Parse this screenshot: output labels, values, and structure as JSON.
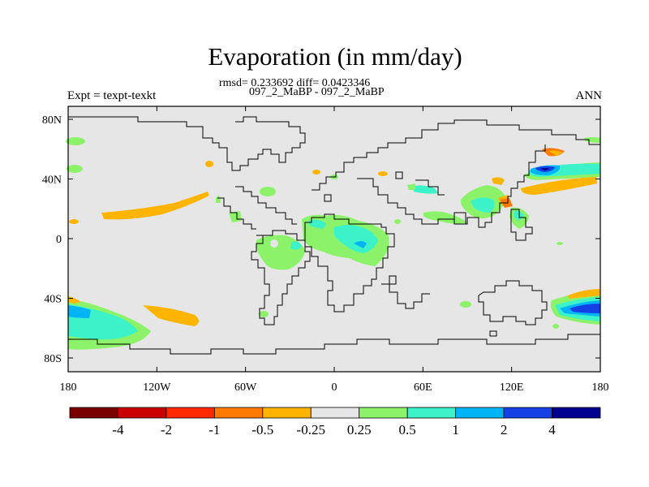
{
  "title": "Evaporation (in mm/day)",
  "stats_line": "rmsd= 0.233692 diff= 0.0423346",
  "case_line": "097_2_MaBP - 097_2_MaBP",
  "left_label": "Expt = texpt-texkt",
  "right_label": "ANN",
  "lat_ticks": [
    {
      "label": "80N",
      "lat": 80
    },
    {
      "label": "40N",
      "lat": 40
    },
    {
      "label": "0",
      "lat": 0
    },
    {
      "label": "40S",
      "lat": -40
    },
    {
      "label": "80S",
      "lat": -80
    }
  ],
  "lon_ticks": [
    {
      "label": "180",
      "lon": -180
    },
    {
      "label": "120W",
      "lon": -120
    },
    {
      "label": "60W",
      "lon": -60
    },
    {
      "label": "0",
      "lon": 0
    },
    {
      "label": "60E",
      "lon": 60
    },
    {
      "label": "120E",
      "lon": 120
    },
    {
      "label": "180",
      "lon": 180
    }
  ],
  "colorbar": {
    "colors": [
      "#7a0000",
      "#c80000",
      "#ff2a00",
      "#ff7a00",
      "#ffb400",
      "#e6e6e6",
      "#8cf26a",
      "#3cf2c8",
      "#00b4f5",
      "#1440e6",
      "#000090"
    ],
    "labels": [
      "-4",
      "-2",
      "-1",
      "-0.5",
      "-0.25",
      "0.25",
      "0.5",
      "1",
      "2",
      "4"
    ]
  },
  "colors": {
    "background": "#e6e6e6",
    "coast": "#000000",
    "orange": "#ffb400",
    "dark_orange": "#ff7a00",
    "green": "#8cf26a",
    "cyan": "#3cf2c8",
    "light_blue": "#00b4f5",
    "blue": "#1440e6",
    "dark_blue": "#000090"
  },
  "icons": [
    "map-field",
    "colorbar"
  ]
}
